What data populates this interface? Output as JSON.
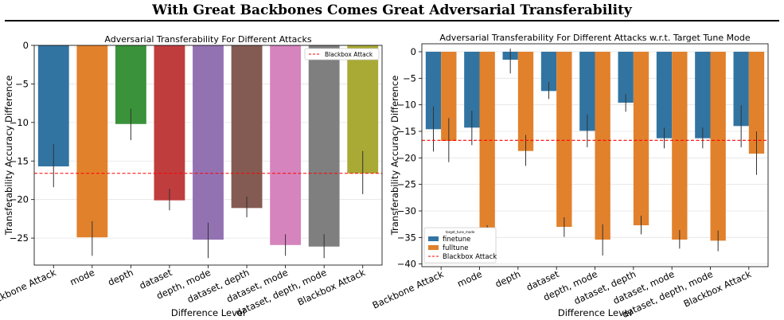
{
  "header": {
    "title": "With Great Backbones Comes Great Adversarial Transferability"
  },
  "chart_data": [
    {
      "type": "bar",
      "title": "Adversarial Transferability For Different Attacks",
      "xlabel": "Difference Level",
      "ylabel": "Transferability Accuracy Difference",
      "ylim": [
        -28.5,
        0
      ],
      "yticks": [
        0,
        -5,
        -10,
        -15,
        -20,
        -25
      ],
      "ytick_labels": [
        "0",
        "−5",
        "−10",
        "−15",
        "−20",
        "−25"
      ],
      "grid": true,
      "legend_position": "top-right",
      "legend_items": [
        "Blackbox Attack"
      ],
      "categories": [
        "Backbone Attack",
        "mode",
        "depth",
        "dataset",
        "depth, mode",
        "dataset, depth",
        "dataset, mode",
        "dataset, depth, mode",
        "Blackbox Attack"
      ],
      "values": [
        -15.7,
        -24.9,
        -10.2,
        -20.1,
        -25.2,
        -21.1,
        -25.9,
        -26.1,
        -16.6
      ],
      "error_bars": [
        [
          -18.4,
          -12.8
        ],
        [
          -27.3,
          -22.8
        ],
        [
          -12.3,
          -8.2
        ],
        [
          -21.4,
          -18.6
        ],
        [
          -27.6,
          -23.0
        ],
        [
          -22.3,
          -19.6
        ],
        [
          -27.3,
          -24.5
        ],
        [
          -27.6,
          -24.5
        ],
        [
          -19.3,
          -13.7
        ]
      ],
      "colors": [
        "#3274a1",
        "#e1812c",
        "#3a923a",
        "#c03d3e",
        "#9372b2",
        "#845b53",
        "#d684bd",
        "#7f7f7f",
        "#a9aa35"
      ],
      "reference_line": {
        "label": "Blackbox Attack",
        "value": -16.6,
        "color": "#ff0000"
      }
    },
    {
      "type": "bar",
      "title": "Adversarial Transferability For Different Attacks w.r.t. Target Tune Mode",
      "xlabel": "Difference Level",
      "ylabel": "Transferability Accuracy Difference",
      "ylim": [
        -40.5,
        1.5
      ],
      "yticks": [
        0,
        -5,
        -10,
        -15,
        -20,
        -25,
        -30,
        -35,
        -40
      ],
      "ytick_labels": [
        "0",
        "−5",
        "−10",
        "−15",
        "−20",
        "−25",
        "−30",
        "−35",
        "−40"
      ],
      "grid": true,
      "legend_position": "bottom-left",
      "legend_title": "target_tune_mode",
      "legend_items": [
        "finetune",
        "fulltune",
        "Blackbox Attack"
      ],
      "categories": [
        "Backbone Attack",
        "mode",
        "depth",
        "dataset",
        "depth, mode",
        "dataset, depth",
        "dataset, mode",
        "dataset, depth, mode",
        "Blackbox Attack"
      ],
      "series": [
        {
          "name": "finetune",
          "color": "#3274a1",
          "values": [
            -14.6,
            -14.3,
            -1.5,
            -7.4,
            -14.9,
            -9.6,
            -16.3,
            -16.3,
            -14.0
          ],
          "error_bars": [
            [
              -18.8,
              -10.3
            ],
            [
              -17.6,
              -11.1
            ],
            [
              -4.1,
              0.6
            ],
            [
              -8.9,
              -5.7
            ],
            [
              -18.0,
              -11.8
            ],
            [
              -11.3,
              -8.0
            ],
            [
              -18.2,
              -14.3
            ],
            [
              -18.2,
              -14.3
            ],
            [
              -18.0,
              -10.1
            ]
          ]
        },
        {
          "name": "fulltune",
          "color": "#e1812c",
          "values": [
            -16.8,
            -35.4,
            -18.7,
            -33.0,
            -35.4,
            -32.7,
            -35.4,
            -35.6,
            -19.2
          ],
          "error_bars": [
            [
              -20.8,
              -12.5
            ],
            [
              -37.0,
              -32.7
            ],
            [
              -21.5,
              -15.7
            ],
            [
              -34.9,
              -31.2
            ],
            [
              -38.4,
              -32.5
            ],
            [
              -34.4,
              -30.9
            ],
            [
              -37.1,
              -33.6
            ],
            [
              -37.6,
              -33.7
            ],
            [
              -23.2,
              -15.0
            ]
          ]
        }
      ],
      "reference_line": {
        "label": "Blackbox Attack",
        "value": -16.7,
        "color": "#ff0000"
      }
    }
  ]
}
